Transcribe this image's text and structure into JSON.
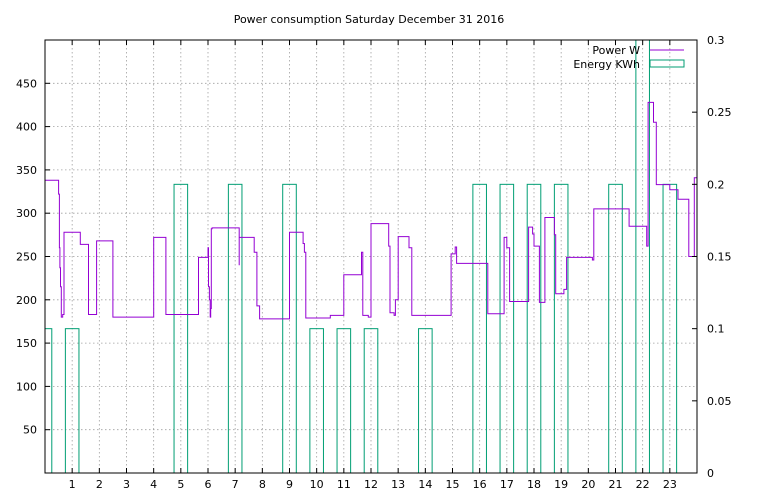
{
  "chart_data": {
    "type": "line",
    "title": "Power consumption Saturday December 31 2016",
    "xlabel": "",
    "ylabel": "",
    "y2label": "",
    "xlim": [
      0,
      24
    ],
    "ylim": [
      0,
      500
    ],
    "y2lim": [
      0,
      0.3
    ],
    "grid": true,
    "legend_position": "top-right",
    "x_ticks": [
      1,
      2,
      3,
      4,
      5,
      6,
      7,
      8,
      9,
      10,
      11,
      12,
      13,
      14,
      15,
      16,
      17,
      18,
      19,
      20,
      21,
      22,
      23
    ],
    "y_ticks": [
      50,
      100,
      150,
      200,
      250,
      300,
      350,
      400,
      450
    ],
    "y2_ticks": [
      0,
      0.05,
      0.1,
      0.15,
      0.2,
      0.25,
      0.3
    ],
    "y2_tick_labels": [
      "0",
      "0.05",
      "0.1",
      "0.15",
      "0.2",
      "0.25",
      "0.3"
    ],
    "series": [
      {
        "name": "Power W",
        "axis": "y",
        "color": "#9400d3",
        "style": "step",
        "x": [
          0,
          0.48,
          0.5,
          0.53,
          0.55,
          0.57,
          0.6,
          0.65,
          0.7,
          1.3,
          1.6,
          1.6,
          1.9,
          1.9,
          2.5,
          2.5,
          4.0,
          4.0,
          4.45,
          4.45,
          5.65,
          5.65,
          6.0,
          6.02,
          6.05,
          6.08,
          6.1,
          6.12,
          6.15,
          6.5,
          7.0,
          7.15,
          7.15,
          7.7,
          7.8,
          7.9,
          9.0,
          9.0,
          9.5,
          9.55,
          9.6,
          9.9,
          10.5,
          10.5,
          11.0,
          11.6,
          11.65,
          11.7,
          11.9,
          12.0,
          12.6,
          12.65,
          12.7,
          12.85,
          12.9,
          13.0,
          13.4,
          13.5,
          14.0,
          14.6,
          14.95,
          15.1,
          15.15,
          16.3,
          16.4,
          16.9,
          16.95,
          17.0,
          17.1,
          17.8,
          17.9,
          17.95,
          18.0,
          18.2,
          18.4,
          18.7,
          18.75,
          18.8,
          19.1,
          19.2,
          20.1,
          20.15,
          20.2,
          20.6,
          21.25,
          21.5,
          21.7,
          22.1,
          22.15,
          22.2,
          22.4,
          22.5,
          22.8,
          23.0,
          23.2,
          23.3,
          23.7,
          23.75,
          23.9,
          24
        ],
        "values": [
          338,
          338,
          322,
          260,
          237,
          215,
          180,
          183,
          278,
          264,
          183,
          183,
          183,
          268,
          255,
          180,
          180,
          272,
          255,
          183,
          183,
          249,
          260,
          215,
          200,
          180,
          190,
          282,
          283,
          283,
          283,
          240,
          272,
          255,
          193,
          178,
          178,
          278,
          265,
          255,
          179,
          179,
          179,
          182,
          229,
          229,
          255,
          182,
          180,
          288,
          288,
          262,
          185,
          182,
          200,
          273,
          260,
          182,
          182,
          182,
          253,
          261,
          242,
          184,
          184,
          272,
          272,
          260,
          198,
          284,
          284,
          276,
          262,
          197,
          295,
          295,
          275,
          207,
          212,
          249,
          249,
          246,
          305,
          305,
          305,
          285,
          285,
          285,
          262,
          428,
          405,
          333,
          333,
          327,
          327,
          316,
          250,
          250,
          341,
          333
        ]
      },
      {
        "name": "Energy KWh",
        "axis": "y2",
        "color": "#009e73",
        "style": "bars",
        "bars": [
          [
            0.0,
            0.25,
            0.1
          ],
          [
            0.75,
            1.25,
            0.1
          ],
          [
            4.75,
            5.25,
            0.2
          ],
          [
            6.75,
            7.25,
            0.2
          ],
          [
            8.75,
            9.25,
            0.2
          ],
          [
            9.75,
            10.25,
            0.1
          ],
          [
            10.75,
            11.25,
            0.1
          ],
          [
            11.75,
            12.25,
            0.1
          ],
          [
            13.75,
            14.25,
            0.1
          ],
          [
            15.75,
            16.25,
            0.2
          ],
          [
            16.75,
            17.25,
            0.2
          ],
          [
            17.75,
            18.25,
            0.2
          ],
          [
            18.75,
            19.25,
            0.2
          ],
          [
            20.75,
            21.25,
            0.2
          ],
          [
            21.75,
            22.25,
            0.3
          ],
          [
            22.75,
            23.25,
            0.2
          ]
        ]
      }
    ]
  }
}
